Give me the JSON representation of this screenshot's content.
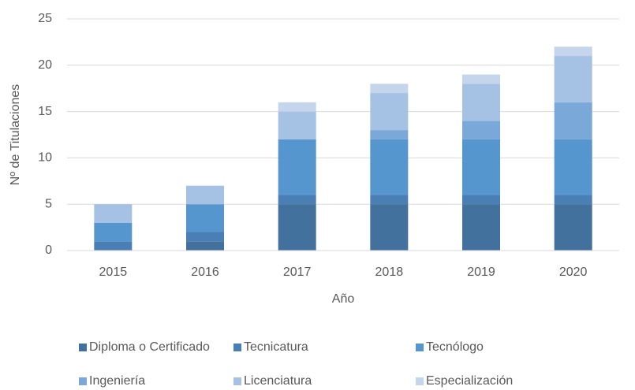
{
  "chart_data": {
    "type": "bar",
    "stacked": true,
    "x_label": "Año",
    "y_label": "Nº de Titulaciones",
    "categories": [
      "2015",
      "2016",
      "2017",
      "2018",
      "2019",
      "2020"
    ],
    "series": [
      {
        "name": "Diploma o Certificado",
        "color": "#41719c",
        "values": [
          0,
          1,
          5,
          5,
          5,
          5
        ]
      },
      {
        "name": "Tecnicatura",
        "color": "#4a7fb5",
        "values": [
          1,
          1,
          1,
          1,
          1,
          1
        ]
      },
      {
        "name": "Tecnólogo",
        "color": "#5596cf",
        "values": [
          2,
          3,
          6,
          6,
          6,
          6
        ]
      },
      {
        "name": "Ingeniería",
        "color": "#7aa8d8",
        "values": [
          0,
          0,
          0,
          1,
          2,
          4
        ]
      },
      {
        "name": "Licenciatura",
        "color": "#a5c1e4",
        "values": [
          2,
          2,
          3,
          4,
          4,
          5
        ]
      },
      {
        "name": "Especialización",
        "color": "#c5d5ec",
        "values": [
          0,
          0,
          1,
          1,
          1,
          1
        ]
      }
    ],
    "ylim": [
      0,
      25
    ],
    "yticks": [
      0,
      5,
      10,
      15,
      20,
      25
    ],
    "grid": true
  }
}
